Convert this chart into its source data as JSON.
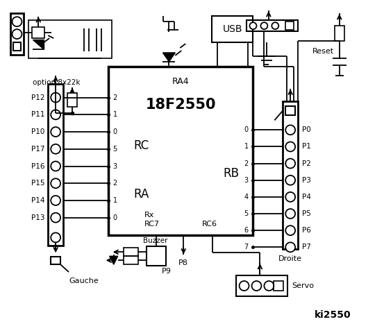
{
  "title": "ki2550",
  "bg_color": "#ffffff",
  "line_color": "#000000",
  "chip_label": "18F2550",
  "chip_sublabel": "RA4",
  "left_connector_label": "Gauche",
  "right_connector_label": "Droite",
  "left_pins": [
    "P12",
    "P11",
    "P10",
    "P17",
    "P16",
    "P15",
    "P14",
    "P13"
  ],
  "right_pins": [
    "P0",
    "P1",
    "P2",
    "P3",
    "P4",
    "P5",
    "P6",
    "P7"
  ],
  "rc_pins": [
    "2",
    "1",
    "0",
    "5",
    "3",
    "2",
    "1",
    "0"
  ],
  "rb_pins": [
    "0",
    "1",
    "2",
    "3",
    "4",
    "5",
    "6",
    "7"
  ],
  "rc_label": "RC",
  "ra_label": "RA",
  "rb_label": "RB",
  "option_text": "option 8x22k",
  "usb_label": "USB",
  "reset_label": "Reset",
  "buzzer_label": "Buzzer",
  "servo_label": "Servo",
  "p8_label": "P8",
  "p9_label": "P9"
}
